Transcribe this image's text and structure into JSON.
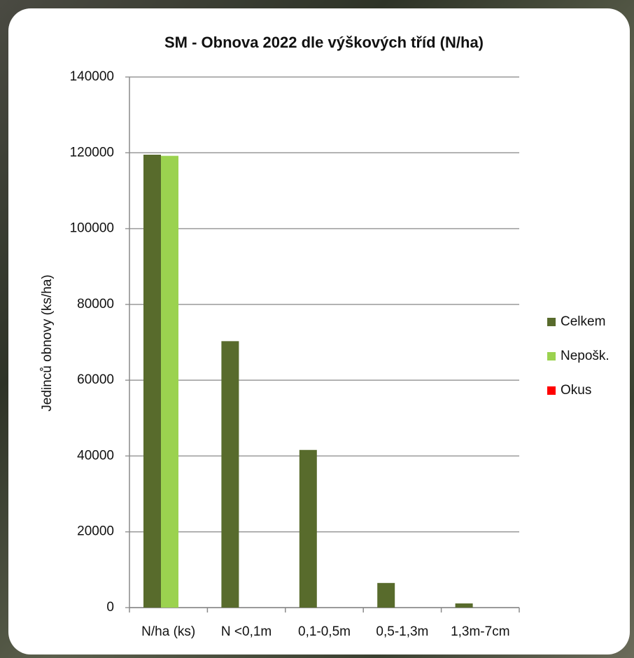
{
  "chart_data": {
    "type": "bar",
    "title": "SM - Obnova 2022 dle výškových tříd  (N/ha)",
    "y_label": "Jedinců obnovy  (ks/ha)",
    "categories": [
      "N/ha (ks)",
      "N <0,1m",
      "0,1-0,5m",
      "0,5-1,3m",
      "1,3m-7cm"
    ],
    "series": [
      {
        "name": "Celkem",
        "color": "#586b2c",
        "values": [
          119500,
          70300,
          41600,
          6500,
          1100
        ]
      },
      {
        "name": "Nepošk.",
        "color": "#9bd24f",
        "values": [
          119200,
          0,
          0,
          0,
          0
        ]
      },
      {
        "name": "Okus",
        "color": "#ff0000",
        "values": [
          0,
          0,
          0,
          0,
          0
        ]
      }
    ],
    "ylim": [
      0,
      140000
    ],
    "yticks": [
      0,
      20000,
      40000,
      60000,
      80000,
      100000,
      120000,
      140000
    ],
    "grid": true,
    "legend": "right"
  }
}
